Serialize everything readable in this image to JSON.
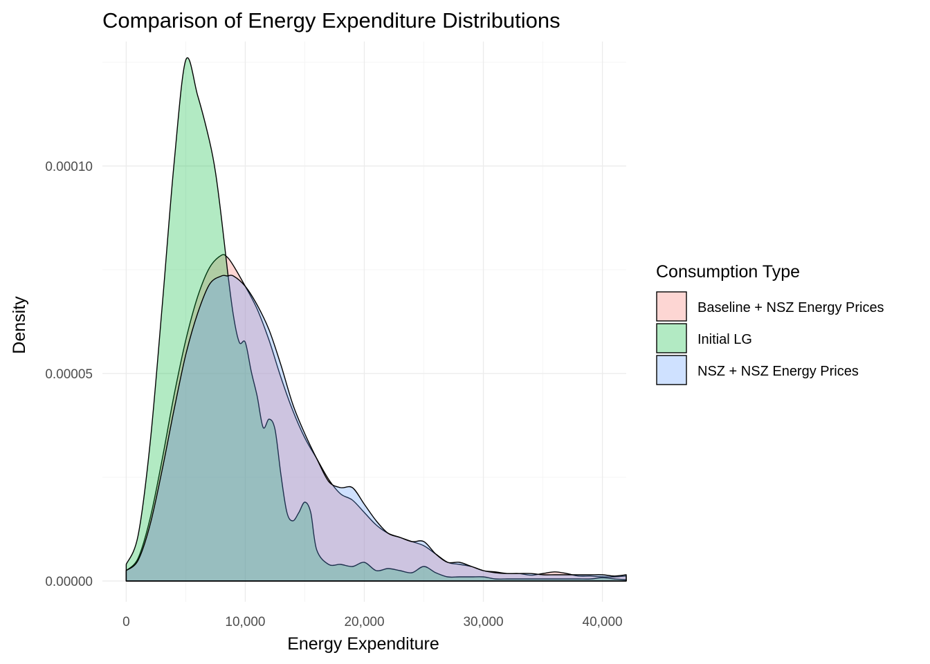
{
  "chart_data": {
    "type": "area",
    "title": "Comparison of Energy Expenditure Distributions",
    "xlabel": "Energy Expenditure",
    "ylabel": "Density",
    "xlim": [
      -2000,
      42000
    ],
    "ylim": [
      -5e-06,
      0.00013
    ],
    "x_ticks": [
      0,
      10000,
      20000,
      30000,
      40000
    ],
    "x_tick_labels": [
      "0",
      "10,000",
      "20,000",
      "30,000",
      "40,000"
    ],
    "y_ticks": [
      0,
      5e-05,
      0.0001
    ],
    "y_tick_labels": [
      "0.00000",
      "0.00005",
      "0.00010"
    ],
    "grid": true,
    "legend": {
      "title": "Consumption Type",
      "position": "right"
    },
    "series": [
      {
        "name": "Baseline + NSZ Energy Prices",
        "color": "#F8766D",
        "opacity": 0.3,
        "x": [
          0,
          1000,
          2000,
          3000,
          4000,
          5000,
          6000,
          7000,
          8000,
          8500,
          9000,
          10000,
          11000,
          12000,
          13000,
          14000,
          15000,
          16000,
          17000,
          18000,
          19000,
          20000,
          21000,
          22000,
          23000,
          24000,
          25000,
          26000,
          27000,
          28000,
          29000,
          30000,
          31000,
          32000,
          33000,
          34000,
          35000,
          36000,
          37000,
          38000,
          39000,
          40000,
          41000,
          42000
        ],
        "y": [
          2.5e-06,
          5.5e-06,
          1.5e-05,
          2.9e-05,
          4.45e-05,
          5.8e-05,
          6.85e-05,
          7.55e-05,
          7.85e-05,
          7.8e-05,
          7.6e-05,
          7.1e-05,
          6.55e-05,
          5.8e-05,
          4.9e-05,
          4.1e-05,
          3.45e-05,
          2.95e-05,
          2.45e-05,
          2.1e-05,
          1.95e-05,
          1.65e-05,
          1.35e-05,
          1.15e-05,
          1.05e-05,
          9.5e-06,
          8.5e-06,
          6.5e-06,
          4.5e-06,
          4e-06,
          3.5e-06,
          2.5e-06,
          2.2e-06,
          1.8e-06,
          1.8e-06,
          1.4e-06,
          1.8e-06,
          2.2e-06,
          1.8e-06,
          1.2e-06,
          1.2e-06,
          1e-06,
          1e-06,
          1.2e-06
        ]
      },
      {
        "name": "Initial LG",
        "color": "#00BA38",
        "opacity": 0.3,
        "x": [
          0,
          1000,
          2000,
          3000,
          4000,
          5000,
          6000,
          7000,
          7500,
          8000,
          8500,
          9000,
          9500,
          10000,
          10500,
          11000,
          11500,
          12000,
          12500,
          13000,
          13500,
          14000,
          14500,
          15000,
          15500,
          16000,
          17000,
          18000,
          19000,
          20000,
          21000,
          22000,
          23000,
          24000,
          25000,
          26000,
          27000,
          28000,
          29000,
          30000,
          31000,
          32000,
          33000,
          34000,
          35000,
          36000,
          37000,
          38000,
          39000,
          40000,
          41000,
          42000
        ],
        "y": [
          4e-06,
          1.1e-05,
          3.3e-05,
          6.55e-05,
          0.0001,
          0.0001255,
          0.000117,
          0.000106,
          9.85e-05,
          8.75e-05,
          7.5e-05,
          6.4e-05,
          5.75e-05,
          5.75e-05,
          5.05e-05,
          4.45e-05,
          3.7e-05,
          3.9e-05,
          3.65e-05,
          2.55e-05,
          1.65e-05,
          1.45e-05,
          1.65e-05,
          1.9e-05,
          1.65e-05,
          7.5e-06,
          4e-06,
          4e-06,
          3.5e-06,
          4.5e-06,
          2.5e-06,
          3e-06,
          2.5e-06,
          2e-06,
          3.5e-06,
          2e-06,
          1e-06,
          1e-06,
          1e-06,
          1e-06,
          5e-07,
          5e-07,
          5e-07,
          5e-07,
          5e-07,
          5e-07,
          5e-07,
          5e-07,
          5e-07,
          8e-07,
          5e-07,
          3e-07
        ]
      },
      {
        "name": "NSZ + NSZ Energy Prices",
        "color": "#619CFF",
        "opacity": 0.3,
        "x": [
          0,
          1000,
          2000,
          3000,
          4000,
          5000,
          6000,
          7000,
          8000,
          8500,
          9000,
          10000,
          11000,
          12000,
          13000,
          14000,
          15000,
          16000,
          17000,
          18000,
          19000,
          20000,
          21000,
          22000,
          23000,
          24000,
          25000,
          26000,
          27000,
          28000,
          29000,
          30000,
          31000,
          32000,
          33000,
          34000,
          35000,
          36000,
          37000,
          38000,
          39000,
          40000,
          41000,
          42000
        ],
        "y": [
          2.5e-06,
          5e-06,
          1.35e-05,
          2.65e-05,
          4.1e-05,
          5.45e-05,
          6.45e-05,
          7.15e-05,
          7.35e-05,
          7.35e-05,
          7.35e-05,
          7.1e-05,
          6.65e-05,
          6.05e-05,
          5.2e-05,
          4.25e-05,
          3.55e-05,
          2.95e-05,
          2.4e-05,
          2.25e-05,
          2.25e-05,
          1.85e-05,
          1.45e-05,
          1.15e-05,
          1.05e-05,
          9.5e-06,
          9.5e-06,
          6.5e-06,
          4.5e-06,
          4.5e-06,
          3.5e-06,
          2.5e-06,
          2e-06,
          1.8e-06,
          1.8e-06,
          1.8e-06,
          1.5e-06,
          1.5e-06,
          1.5e-06,
          1.5e-06,
          1.5e-06,
          1.5e-06,
          1.2e-06,
          1.5e-06
        ]
      }
    ]
  }
}
